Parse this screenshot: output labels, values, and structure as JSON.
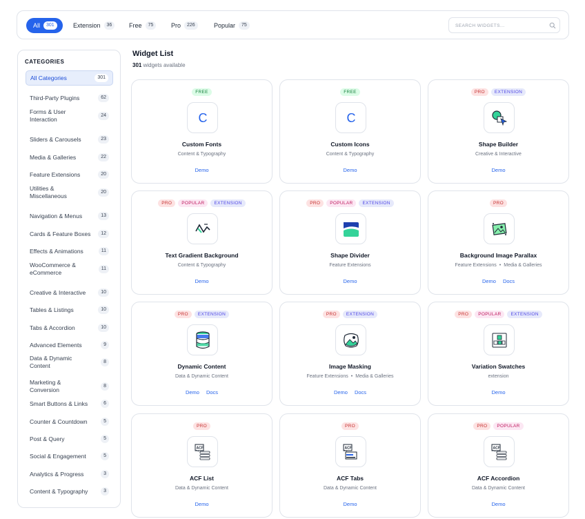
{
  "filters": [
    {
      "label": "All",
      "count": "301",
      "active": true
    },
    {
      "label": "Extension",
      "count": "36"
    },
    {
      "label": "Free",
      "count": "75"
    },
    {
      "label": "Pro",
      "count": "226"
    },
    {
      "label": "Popular",
      "count": "75"
    }
  ],
  "search": {
    "placeholder": "SEARCH WIDGETS..."
  },
  "sidebar": {
    "title": "CATEGORIES",
    "items": [
      {
        "label": "All Categories",
        "count": "301"
      },
      {
        "label": "Third-Party Plugins",
        "count": "62"
      },
      {
        "label": "Forms & User Interaction",
        "count": "24"
      },
      {
        "label": "Sliders & Carousels",
        "count": "23"
      },
      {
        "label": "Media & Galleries",
        "count": "22"
      },
      {
        "label": "Feature Extensions",
        "count": "20"
      },
      {
        "label": "Utilities & Miscellaneous",
        "count": "20"
      },
      {
        "label": "Navigation & Menus",
        "count": "13"
      },
      {
        "label": "Cards & Feature Boxes",
        "count": "12"
      },
      {
        "label": "Effects & Animations",
        "count": "11"
      },
      {
        "label": "WooCommerce & eCommerce",
        "count": "11"
      },
      {
        "label": "Creative & Interactive",
        "count": "10"
      },
      {
        "label": "Tables & Listings",
        "count": "10"
      },
      {
        "label": "Tabs & Accordion",
        "count": "10"
      },
      {
        "label": "Advanced Elements",
        "count": "9"
      },
      {
        "label": "Data & Dynamic Content",
        "count": "8"
      },
      {
        "label": "Marketing & Conversion",
        "count": "8"
      },
      {
        "label": "Smart Buttons & Links",
        "count": "6"
      },
      {
        "label": "Counter & Countdown",
        "count": "5"
      },
      {
        "label": "Post & Query",
        "count": "5"
      },
      {
        "label": "Social & Engagement",
        "count": "5"
      },
      {
        "label": "Analytics & Progress",
        "count": "3"
      },
      {
        "label": "Content & Typography",
        "count": "3"
      }
    ]
  },
  "main": {
    "title": "Widget List",
    "count": "301",
    "count_suffix": "widgets available"
  },
  "cards": [
    {
      "title": "Custom Fonts",
      "category": "Content & Typography",
      "badges": [
        "FREE"
      ],
      "icon": "letter-c-icon",
      "links": [
        "Demo"
      ]
    },
    {
      "title": "Custom Icons",
      "category": "Content & Typography",
      "badges": [
        "FREE"
      ],
      "icon": "letter-c-icon",
      "links": [
        "Demo"
      ]
    },
    {
      "title": "Shape Builder",
      "category": "Creative & Interactive",
      "badges": [
        "PRO",
        "EXTENSION"
      ],
      "icon": "shape-cursor-icon",
      "links": [
        "Demo"
      ]
    },
    {
      "title": "Text Gradient Background",
      "category": "Content & Typography",
      "badges": [
        "PRO",
        "POPULAR",
        "EXTENSION"
      ],
      "icon": "gradient-text-icon",
      "links": [
        "Demo"
      ]
    },
    {
      "title": "Shape Divider",
      "category": "Feature Extensions",
      "badges": [
        "PRO",
        "POPULAR",
        "EXTENSION"
      ],
      "icon": "wave-divider-icon",
      "links": [
        "Demo"
      ]
    },
    {
      "title": "Background Image Parallax",
      "category": "Feature Extensions",
      "category2": "Media & Galleries",
      "badges": [
        "PRO"
      ],
      "icon": "parallax-image-icon",
      "links": [
        "Demo",
        "Docs"
      ]
    },
    {
      "title": "Dynamic Content",
      "category": "Data & Dynamic Content",
      "badges": [
        "PRO",
        "EXTENSION"
      ],
      "icon": "database-icon",
      "links": [
        "Demo",
        "Docs"
      ]
    },
    {
      "title": "Image Masking",
      "category": "Feature Extensions",
      "category2": "Media & Galleries",
      "badges": [
        "PRO",
        "EXTENSION"
      ],
      "icon": "image-mask-icon",
      "links": [
        "Demo",
        "Docs"
      ]
    },
    {
      "title": "Variation Swatches",
      "category": "extension",
      "badges": [
        "PRO",
        "POPULAR",
        "EXTENSION"
      ],
      "icon": "swatches-icon",
      "links": [
        "Demo"
      ]
    },
    {
      "title": "ACF List",
      "category": "Data & Dynamic Content",
      "badges": [
        "PRO"
      ],
      "icon": "acf-list-icon",
      "links": [
        "Demo"
      ]
    },
    {
      "title": "ACF Tabs",
      "category": "Data & Dynamic Content",
      "badges": [
        "PRO"
      ],
      "icon": "acf-tabs-icon",
      "links": [
        "Demo"
      ]
    },
    {
      "title": "ACF Accordion",
      "category": "Data & Dynamic Content",
      "badges": [
        "PRO",
        "POPULAR"
      ],
      "icon": "acf-accordion-icon",
      "links": [
        "Demo"
      ]
    }
  ],
  "icon_text": {
    "c": "C",
    "acf": "ACF"
  }
}
